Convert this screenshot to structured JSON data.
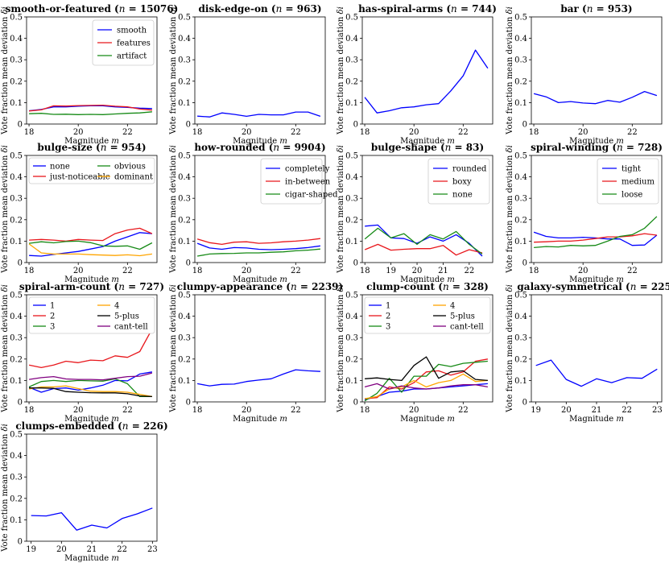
{
  "figure": {
    "xlabel": "Magnitude m",
    "ylabel": "Vote fraction mean deviation δi"
  },
  "colors": {
    "blue": "#0000ff",
    "red": "#e8171c",
    "green": "#168a16",
    "orange": "#ffa500",
    "black": "#000000",
    "purple": "#800080"
  },
  "chart_data": [
    {
      "type": "line",
      "title": "smooth-or-featured",
      "n": "15076",
      "xlabel": "Magnitude m",
      "ylabel": "Vote fraction mean deviation δi",
      "xlim": [
        17.9,
        23.2
      ],
      "ylim": [
        0,
        0.5
      ],
      "xticks": [
        18,
        20,
        22
      ],
      "yticks": [
        0,
        0.1,
        0.2,
        0.3,
        0.4,
        0.5
      ],
      "legend": "top-right",
      "x": [
        18,
        18.5,
        19,
        19.5,
        20,
        20.5,
        21,
        21.5,
        22,
        22.5,
        23
      ],
      "series": [
        {
          "name": "smooth",
          "color": "blue",
          "values": [
            0.062,
            0.068,
            0.08,
            0.08,
            0.083,
            0.085,
            0.085,
            0.08,
            0.078,
            0.074,
            0.072
          ]
        },
        {
          "name": "features",
          "color": "red",
          "values": [
            0.061,
            0.066,
            0.085,
            0.084,
            0.086,
            0.087,
            0.088,
            0.083,
            0.08,
            0.07,
            0.065
          ]
        },
        {
          "name": "artifact",
          "color": "green",
          "values": [
            0.048,
            0.05,
            0.045,
            0.046,
            0.044,
            0.045,
            0.044,
            0.047,
            0.05,
            0.052,
            0.057
          ]
        }
      ]
    },
    {
      "type": "line",
      "title": "disk-edge-on",
      "n": "963",
      "xlabel": "Magnitude m",
      "ylabel": "Vote fraction mean deviation δi",
      "xlim": [
        17.9,
        23.2
      ],
      "ylim": [
        0,
        0.5
      ],
      "xticks": [
        18,
        20,
        22
      ],
      "yticks": [
        0,
        0.1,
        0.2,
        0.3,
        0.4,
        0.5
      ],
      "legend": "",
      "x": [
        18,
        18.5,
        19,
        19.5,
        20,
        20.5,
        21,
        21.5,
        22,
        22.5,
        23
      ],
      "series": [
        {
          "name": "",
          "color": "blue",
          "values": [
            0.037,
            0.033,
            0.052,
            0.045,
            0.036,
            0.045,
            0.043,
            0.043,
            0.056,
            0.056,
            0.036
          ]
        }
      ]
    },
    {
      "type": "line",
      "title": "has-spiral-arms",
      "n": "744",
      "xlabel": "Magnitude m",
      "ylabel": "Vote fraction mean deviation δi",
      "xlim": [
        17.9,
        23.2
      ],
      "ylim": [
        0,
        0.5
      ],
      "xticks": [
        18,
        20,
        22
      ],
      "yticks": [
        0,
        0.1,
        0.2,
        0.3,
        0.4,
        0.5
      ],
      "legend": "",
      "x": [
        18,
        18.5,
        19,
        19.5,
        20,
        20.5,
        21,
        21.5,
        22,
        22.5,
        23
      ],
      "series": [
        {
          "name": "",
          "color": "blue",
          "values": [
            0.125,
            0.052,
            0.062,
            0.076,
            0.08,
            0.09,
            0.095,
            0.155,
            0.225,
            0.345,
            0.26
          ]
        }
      ]
    },
    {
      "type": "line",
      "title": "bar",
      "n": "953",
      "xlabel": "Magnitude m",
      "ylabel": "Vote fraction mean deviation δi",
      "xlim": [
        17.9,
        23.2
      ],
      "ylim": [
        0,
        0.5
      ],
      "xticks": [
        18,
        20,
        22
      ],
      "yticks": [
        0,
        0.1,
        0.2,
        0.3,
        0.4,
        0.5
      ],
      "legend": "",
      "x": [
        18,
        18.5,
        19,
        19.5,
        20,
        20.5,
        21,
        21.5,
        22,
        22.5,
        23
      ],
      "series": [
        {
          "name": "",
          "color": "blue",
          "values": [
            0.142,
            0.127,
            0.1,
            0.105,
            0.098,
            0.095,
            0.11,
            0.102,
            0.125,
            0.152,
            0.133
          ]
        }
      ]
    },
    {
      "type": "line",
      "title": "bulge-size",
      "n": "954",
      "xlabel": "Magnitude m",
      "ylabel": "Vote fraction mean deviation δi",
      "xlim": [
        17.9,
        23.2
      ],
      "ylim": [
        0,
        0.5
      ],
      "xticks": [
        18,
        20,
        22
      ],
      "yticks": [
        0,
        0.1,
        0.2,
        0.3,
        0.4,
        0.5
      ],
      "legend": "top-2col",
      "x": [
        18,
        18.5,
        19,
        19.5,
        20,
        20.5,
        21,
        21.5,
        22,
        22.5,
        23
      ],
      "series": [
        {
          "name": "none",
          "color": "blue",
          "values": [
            0.033,
            0.03,
            0.038,
            0.045,
            0.052,
            0.063,
            0.075,
            0.1,
            0.12,
            0.14,
            0.135
          ]
        },
        {
          "name": "just-noticeable",
          "color": "red",
          "values": [
            0.105,
            0.108,
            0.105,
            0.1,
            0.108,
            0.105,
            0.103,
            0.135,
            0.152,
            0.16,
            0.135
          ]
        },
        {
          "name": "obvious",
          "color": "green",
          "values": [
            0.09,
            0.097,
            0.092,
            0.098,
            0.1,
            0.093,
            0.078,
            0.076,
            0.078,
            0.062,
            0.092
          ]
        },
        {
          "name": "dominant",
          "color": "orange",
          "values": [
            0.087,
            0.045,
            0.04,
            0.04,
            0.04,
            0.037,
            0.035,
            0.033,
            0.036,
            0.032,
            0.04
          ]
        }
      ]
    },
    {
      "type": "line",
      "title": "how-rounded",
      "n": "9904",
      "xlabel": "Magnitude m",
      "ylabel": "Vote fraction mean deviation δi",
      "xlim": [
        17.9,
        23.2
      ],
      "ylim": [
        0,
        0.5
      ],
      "xticks": [
        18,
        20,
        22
      ],
      "yticks": [
        0,
        0.1,
        0.2,
        0.3,
        0.4,
        0.5
      ],
      "legend": "top-right",
      "x": [
        18,
        18.5,
        19,
        19.5,
        20,
        20.5,
        21,
        21.5,
        22,
        22.5,
        23
      ],
      "series": [
        {
          "name": "completely",
          "color": "blue",
          "values": [
            0.09,
            0.068,
            0.062,
            0.07,
            0.068,
            0.062,
            0.06,
            0.062,
            0.065,
            0.07,
            0.078
          ]
        },
        {
          "name": "in-between",
          "color": "red",
          "values": [
            0.11,
            0.093,
            0.085,
            0.095,
            0.097,
            0.09,
            0.092,
            0.097,
            0.1,
            0.105,
            0.112
          ]
        },
        {
          "name": "cigar-shaped",
          "color": "green",
          "values": [
            0.03,
            0.04,
            0.042,
            0.043,
            0.045,
            0.045,
            0.048,
            0.05,
            0.055,
            0.058,
            0.063
          ]
        }
      ]
    },
    {
      "type": "line",
      "title": "bulge-shape",
      "n": "83",
      "xlabel": "Magnitude m",
      "ylabel": "Vote fraction mean deviation δi",
      "xlim": [
        17.9,
        22.9
      ],
      "ylim": [
        0,
        0.5
      ],
      "xticks": [
        18,
        19,
        20,
        21,
        22
      ],
      "yticks": [
        0,
        0.1,
        0.2,
        0.3,
        0.4,
        0.5
      ],
      "legend": "top-right",
      "x": [
        18,
        18.5,
        19,
        19.5,
        20,
        20.5,
        21,
        21.5,
        22,
        22.5
      ],
      "series": [
        {
          "name": "rounded",
          "color": "blue",
          "values": [
            0.17,
            0.175,
            0.115,
            0.112,
            0.09,
            0.12,
            0.1,
            0.13,
            0.09,
            0.03
          ]
        },
        {
          "name": "boxy",
          "color": "red",
          "values": [
            0.06,
            0.085,
            0.058,
            0.062,
            0.065,
            0.065,
            0.08,
            0.035,
            0.06,
            0.045
          ]
        },
        {
          "name": "none",
          "color": "green",
          "values": [
            0.11,
            0.16,
            0.115,
            0.135,
            0.085,
            0.13,
            0.11,
            0.145,
            0.085,
            0.04
          ]
        }
      ]
    },
    {
      "type": "line",
      "title": "spiral-winding",
      "n": "728",
      "xlabel": "Magnitude m",
      "ylabel": "Vote fraction mean deviation δi",
      "xlim": [
        17.9,
        23.2
      ],
      "ylim": [
        0,
        0.5
      ],
      "xticks": [
        18,
        20,
        22
      ],
      "yticks": [
        0,
        0.1,
        0.2,
        0.3,
        0.4,
        0.5
      ],
      "legend": "top-right",
      "x": [
        18,
        18.5,
        19,
        19.5,
        20,
        20.5,
        21,
        21.5,
        22,
        22.5,
        23
      ],
      "series": [
        {
          "name": "tight",
          "color": "blue",
          "values": [
            0.142,
            0.122,
            0.115,
            0.115,
            0.118,
            0.115,
            0.11,
            0.11,
            0.08,
            0.082,
            0.128
          ]
        },
        {
          "name": "medium",
          "color": "red",
          "values": [
            0.095,
            0.097,
            0.1,
            0.1,
            0.105,
            0.112,
            0.12,
            0.12,
            0.125,
            0.135,
            0.128
          ]
        },
        {
          "name": "loose",
          "color": "green",
          "values": [
            0.07,
            0.075,
            0.073,
            0.08,
            0.078,
            0.08,
            0.1,
            0.122,
            0.13,
            0.16,
            0.215
          ]
        }
      ]
    },
    {
      "type": "line",
      "title": "spiral-arm-count",
      "n": "727",
      "xlabel": "Magnitude m",
      "ylabel": "Vote fraction mean deviation δi",
      "xlim": [
        17.9,
        23.2
      ],
      "ylim": [
        0,
        0.5
      ],
      "xticks": [
        18,
        20,
        22
      ],
      "yticks": [
        0,
        0.1,
        0.2,
        0.3,
        0.4,
        0.5
      ],
      "legend": "top-2col",
      "x": [
        18,
        18.5,
        19,
        19.5,
        20,
        20.5,
        21,
        21.5,
        22,
        22.5,
        23
      ],
      "series": [
        {
          "name": "1",
          "color": "blue",
          "values": [
            0.068,
            0.045,
            0.062,
            0.065,
            0.055,
            0.065,
            0.078,
            0.1,
            0.098,
            0.13,
            0.14
          ]
        },
        {
          "name": "2",
          "color": "red",
          "values": [
            0.172,
            0.16,
            0.172,
            0.19,
            0.183,
            0.195,
            0.192,
            0.215,
            0.208,
            0.235,
            0.34
          ]
        },
        {
          "name": "3",
          "color": "green",
          "values": [
            0.07,
            0.095,
            0.1,
            0.095,
            0.1,
            0.098,
            0.097,
            0.108,
            0.085,
            0.025,
            0.025
          ]
        },
        {
          "name": "4",
          "color": "orange",
          "values": [
            0.06,
            0.07,
            0.07,
            0.075,
            0.062,
            0.05,
            0.048,
            0.048,
            0.045,
            0.035,
            0.025
          ]
        },
        {
          "name": "5-plus",
          "color": "black",
          "values": [
            0.065,
            0.065,
            0.063,
            0.048,
            0.045,
            0.043,
            0.042,
            0.042,
            0.038,
            0.028,
            0.025
          ]
        },
        {
          "name": "cant-tell",
          "color": "purple",
          "values": [
            0.105,
            0.113,
            0.118,
            0.107,
            0.105,
            0.105,
            0.103,
            0.11,
            0.118,
            0.12,
            0.135
          ]
        }
      ]
    },
    {
      "type": "line",
      "title": "clumpy-appearance",
      "n": "2239",
      "xlabel": "Magnitude m",
      "ylabel": "Vote fraction mean deviation δi",
      "xlim": [
        17.9,
        23.2
      ],
      "ylim": [
        0,
        0.5
      ],
      "xticks": [
        18,
        20,
        22
      ],
      "yticks": [
        0,
        0.1,
        0.2,
        0.3,
        0.4,
        0.5
      ],
      "legend": "",
      "x": [
        18,
        18.5,
        19,
        19.5,
        20,
        20.5,
        21,
        21.5,
        22,
        22.5,
        23
      ],
      "series": [
        {
          "name": "",
          "color": "blue",
          "values": [
            0.085,
            0.075,
            0.082,
            0.083,
            0.095,
            0.102,
            0.108,
            0.13,
            0.15,
            0.145,
            0.142
          ]
        }
      ]
    },
    {
      "type": "line",
      "title": "clump-count",
      "n": "328",
      "xlabel": "Magnitude m",
      "ylabel": "Vote fraction mean deviation δi",
      "xlim": [
        17.9,
        23.2
      ],
      "ylim": [
        0,
        0.5
      ],
      "xticks": [
        18,
        20,
        22
      ],
      "yticks": [
        0,
        0.1,
        0.2,
        0.3,
        0.4,
        0.5
      ],
      "legend": "top-2col",
      "x": [
        18,
        18.5,
        19,
        19.5,
        20,
        20.5,
        21,
        21.5,
        22,
        22.5,
        23
      ],
      "series": [
        {
          "name": "1",
          "color": "blue",
          "values": [
            0.01,
            0.025,
            0.045,
            0.05,
            0.06,
            0.06,
            0.065,
            0.07,
            0.075,
            0.08,
            0.085
          ]
        },
        {
          "name": "2",
          "color": "red",
          "values": [
            0.015,
            0.02,
            0.07,
            0.06,
            0.09,
            0.14,
            0.145,
            0.125,
            0.14,
            0.19,
            0.2
          ]
        },
        {
          "name": "3",
          "color": "green",
          "values": [
            0.005,
            0.04,
            0.11,
            0.045,
            0.12,
            0.12,
            0.175,
            0.165,
            0.18,
            0.185,
            0.19
          ]
        },
        {
          "name": "4",
          "color": "orange",
          "values": [
            0.015,
            0.025,
            0.06,
            0.07,
            0.1,
            0.07,
            0.09,
            0.1,
            0.13,
            0.095,
            0.1
          ]
        },
        {
          "name": "5-plus",
          "color": "black",
          "values": [
            0.108,
            0.112,
            0.105,
            0.1,
            0.17,
            0.21,
            0.11,
            0.14,
            0.145,
            0.105,
            0.1
          ]
        },
        {
          "name": "cant-tell",
          "color": "purple",
          "values": [
            0.07,
            0.085,
            0.06,
            0.075,
            0.065,
            0.06,
            0.065,
            0.075,
            0.08,
            0.08,
            0.07
          ]
        }
      ]
    },
    {
      "type": "line",
      "title": "galaxy-symmetrical",
      "n": "225",
      "xlabel": "Magnitude m",
      "ylabel": "Vote fraction mean deviation δi",
      "xlim": [
        18.85,
        23.15
      ],
      "ylim": [
        0,
        0.5
      ],
      "xticks": [
        19,
        20,
        21,
        22,
        23
      ],
      "yticks": [
        0,
        0.1,
        0.2,
        0.3,
        0.4,
        0.5
      ],
      "legend": "",
      "x": [
        19,
        19.5,
        20,
        20.5,
        21,
        21.5,
        22,
        22.5,
        23
      ],
      "series": [
        {
          "name": "",
          "color": "blue",
          "values": [
            0.17,
            0.195,
            0.105,
            0.073,
            0.108,
            0.09,
            0.113,
            0.11,
            0.153
          ]
        }
      ]
    },
    {
      "type": "line",
      "title": "clumps-embedded",
      "n": "226",
      "xlabel": "Magnitude m",
      "ylabel": "Vote fraction mean deviation δi",
      "xlim": [
        18.85,
        23.15
      ],
      "ylim": [
        0,
        0.5
      ],
      "xticks": [
        19,
        20,
        21,
        22,
        23
      ],
      "yticks": [
        0,
        0.1,
        0.2,
        0.3,
        0.4,
        0.5
      ],
      "legend": "",
      "x": [
        19,
        19.5,
        20,
        20.5,
        21,
        21.5,
        22,
        22.5,
        23
      ],
      "series": [
        {
          "name": "",
          "color": "blue",
          "values": [
            0.12,
            0.118,
            0.133,
            0.052,
            0.075,
            0.062,
            0.106,
            0.128,
            0.155
          ]
        }
      ]
    }
  ]
}
